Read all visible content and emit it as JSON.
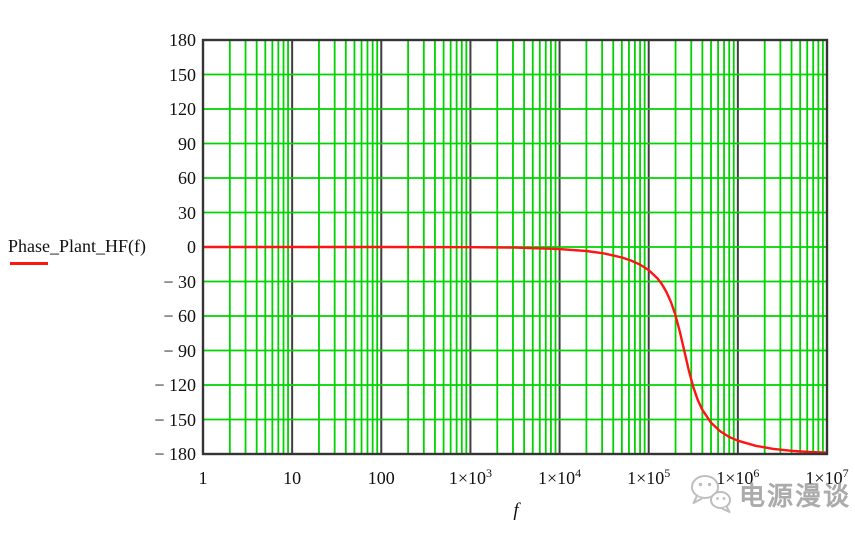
{
  "legend": {
    "label": "Phase_Plant_HF(f)"
  },
  "axes": {
    "x_title": "f",
    "y_tick_labels": [
      "180",
      "150",
      "120",
      "90",
      "60",
      "30",
      "0",
      "− 30",
      "− 60",
      "− 90",
      "− 120",
      "− 150",
      "− 180"
    ],
    "x_tick_labels": [
      "1",
      "10",
      "100",
      "1×10^3",
      "1×10^4",
      "1×10^5",
      "1×10^6",
      "1×10^7"
    ]
  },
  "watermark": {
    "text": "电源漫谈",
    "icon": "wechat-logo"
  },
  "colors": {
    "grid_minor_green": "#00d300",
    "grid_decade_dark": "#3e3e3e",
    "frame": "#343434",
    "trace_red": "#ff1414",
    "text": "#111111",
    "watermark_gray": "#9d9d9d",
    "logo_gray": "#b3b3b3"
  },
  "chart_data": {
    "type": "line",
    "title": "",
    "xlabel": "f",
    "ylabel": "Phase_Plant_HF(f)",
    "x_scale": "log10",
    "x_range": [
      1,
      10000000
    ],
    "y_range": [
      -180,
      180
    ],
    "y_tick_step": 30,
    "grid": "log minor verticals green; decade verticals dark; horizontal green every 30 deg",
    "legend_position": "left, aligned with 0 deg",
    "series": [
      {
        "name": "Phase_Plant_HF(f)",
        "color": "#ff1414",
        "description": "second-order low-pass phase, f0 ~ 2.5e5, Q ~ 1.3",
        "points_log10f_phase": [
          [
            0,
            0.0
          ],
          [
            1,
            0.0
          ],
          [
            2,
            -0.02
          ],
          [
            3,
            -0.18
          ],
          [
            3.5,
            -0.56
          ],
          [
            4.0,
            -1.8
          ],
          [
            4.3,
            -3.5
          ],
          [
            4.5,
            -5.6
          ],
          [
            4.7,
            -9.1
          ],
          [
            4.8,
            -11.7
          ],
          [
            4.9,
            -15.2
          ],
          [
            5.0,
            -20.1
          ],
          [
            5.1,
            -27.4
          ],
          [
            5.15,
            -32.6
          ],
          [
            5.2,
            -39.2
          ],
          [
            5.25,
            -47.9
          ],
          [
            5.3,
            -59.4
          ],
          [
            5.35,
            -73.9
          ],
          [
            5.4,
            -90.7
          ],
          [
            5.45,
            -107.3
          ],
          [
            5.5,
            -121.7
          ],
          [
            5.55,
            -132.9
          ],
          [
            5.6,
            -141.4
          ],
          [
            5.7,
            -152.9
          ],
          [
            5.8,
            -160.1
          ],
          [
            5.9,
            -165.0
          ],
          [
            6.0,
            -168.4
          ],
          [
            6.2,
            -172.9
          ],
          [
            6.4,
            -175.6
          ],
          [
            6.6,
            -177.2
          ],
          [
            6.8,
            -178.3
          ],
          [
            7.0,
            -178.9
          ]
        ]
      }
    ]
  }
}
